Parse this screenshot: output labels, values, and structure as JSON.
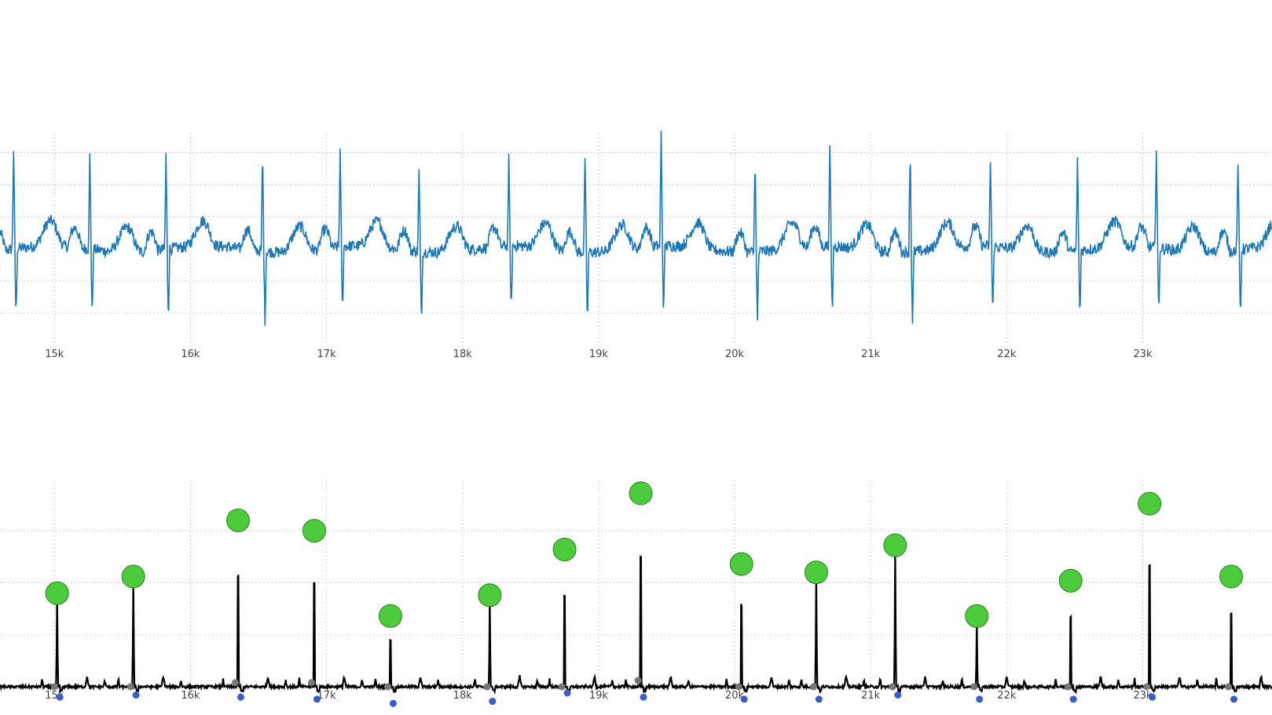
{
  "chart_data": [
    {
      "type": "line",
      "title": "",
      "xlabel": "",
      "ylabel": "",
      "xlim": [
        14600,
        23950
      ],
      "x_ticks": [
        "15k",
        "16k",
        "17k",
        "18k",
        "19k",
        "20k",
        "21k",
        "22k",
        "23k"
      ],
      "x_tick_values": [
        15000,
        16000,
        17000,
        18000,
        19000,
        20000,
        21000,
        22000,
        23000
      ],
      "ylim": [
        -1.5,
        1.8
      ],
      "grid": true,
      "series": [
        {
          "color": "#1f77b4",
          "waveform": "raw ECG signal with baseline wander and high-frequency noise",
          "r_peaks": {
            "x": [
              14700,
              15260,
              15820,
              16530,
              17100,
              17680,
              18340,
              18900,
              19460,
              20150,
              20700,
              21290,
              21880,
              22520,
              23100,
              23700
            ],
            "y": [
              1.55,
              1.45,
              1.5,
              1.6,
              1.5,
              1.25,
              1.35,
              1.5,
              1.75,
              1.6,
              1.6,
              1.7,
              1.35,
              1.4,
              1.6,
              1.4
            ]
          }
        }
      ]
    },
    {
      "type": "line",
      "title": "",
      "xlabel": "",
      "ylabel": "",
      "xlim": [
        14600,
        23950
      ],
      "x_ticks": [
        "15k",
        "16k",
        "17k",
        "18k",
        "19k",
        "20k",
        "21k",
        "22k",
        "23k"
      ],
      "x_tick_values": [
        15000,
        16000,
        17000,
        18000,
        19000,
        20000,
        21000,
        22000,
        23000
      ],
      "ylim": [
        0,
        1.0
      ],
      "grid": true,
      "series": [
        {
          "color": "#000000",
          "waveform": "processed ECG with sharp R peaks on flat baseline",
          "peaks": {
            "x": [
              15020,
              15580,
              16350,
              16910,
              17470,
              18200,
              18750,
              19310,
              20050,
              20600,
              21180,
              21780,
              22470,
              23050,
              23650
            ],
            "y": [
              0.45,
              0.53,
              0.8,
              0.75,
              0.34,
              0.44,
              0.66,
              0.93,
              0.59,
              0.55,
              0.68,
              0.34,
              0.51,
              0.88,
              0.53
            ]
          }
        },
        {
          "name": "",
          "marker": "circle",
          "color": "#4ccc3c",
          "x": [
            15020,
            15580,
            16350,
            16910,
            17470,
            18200,
            18750,
            19310,
            20050,
            20600,
            21180,
            21780,
            22470,
            23050,
            23650
          ],
          "y": [
            0.45,
            0.53,
            0.8,
            0.75,
            0.34,
            0.44,
            0.66,
            0.93,
            0.59,
            0.55,
            0.68,
            0.34,
            0.51,
            0.88,
            0.53
          ]
        },
        {
          "name": "",
          "marker": "circle",
          "color": "#3a5fc4",
          "x": [
            15040,
            15600,
            16370,
            16930,
            17490,
            18220,
            18770,
            19330,
            20070,
            20620,
            21200,
            21800,
            22490,
            23070,
            23670
          ],
          "y": [
            -0.05,
            -0.04,
            -0.05,
            -0.06,
            -0.08,
            -0.07,
            -0.03,
            -0.05,
            -0.06,
            -0.06,
            -0.04,
            -0.06,
            -0.06,
            -0.05,
            -0.06
          ]
        },
        {
          "name": "",
          "marker": "circle",
          "color": "#777777",
          "x": [
            15000,
            15560,
            16330,
            16890,
            17450,
            18180,
            18730,
            19290,
            20030,
            20580,
            21160,
            21760,
            22450,
            23030,
            23630
          ],
          "y": [
            0.0,
            0.0,
            0.02,
            0.02,
            0.0,
            0.0,
            0.0,
            0.03,
            0.0,
            0.0,
            0.0,
            0.0,
            0.0,
            0.0,
            0.0
          ]
        }
      ]
    }
  ]
}
